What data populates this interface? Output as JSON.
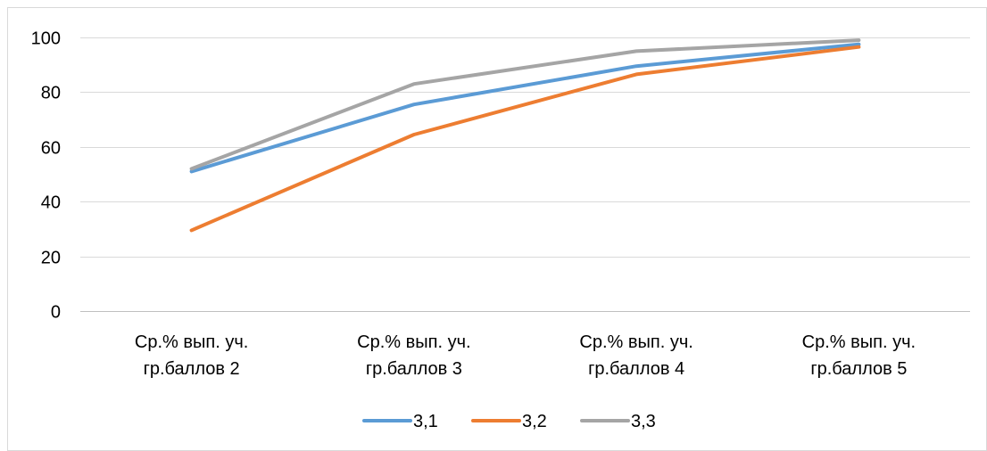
{
  "chart_data": {
    "type": "line",
    "title": "",
    "xlabel": "",
    "ylabel": "",
    "categories": [
      [
        "Ср.% вып. уч.",
        "гр.баллов 2"
      ],
      [
        "Ср.% вып. уч.",
        "гр.баллов 3"
      ],
      [
        "Ср.% вып. уч.",
        "гр.баллов 4"
      ],
      [
        "Ср.% вып. уч.",
        "гр.баллов 5"
      ]
    ],
    "ylim": [
      0,
      100
    ],
    "yticks": [
      0,
      20,
      40,
      60,
      80,
      100
    ],
    "grid": true,
    "legend_position": "bottom",
    "series": [
      {
        "name": "3,1",
        "color": "#5b9bd5",
        "values": [
          51,
          75.5,
          89.5,
          97.5
        ]
      },
      {
        "name": "3,2",
        "color": "#ed7d31",
        "values": [
          29.5,
          64.5,
          86.5,
          96.5
        ]
      },
      {
        "name": "3,3",
        "color": "#a5a5a5",
        "values": [
          52,
          83,
          95,
          99
        ]
      }
    ]
  }
}
